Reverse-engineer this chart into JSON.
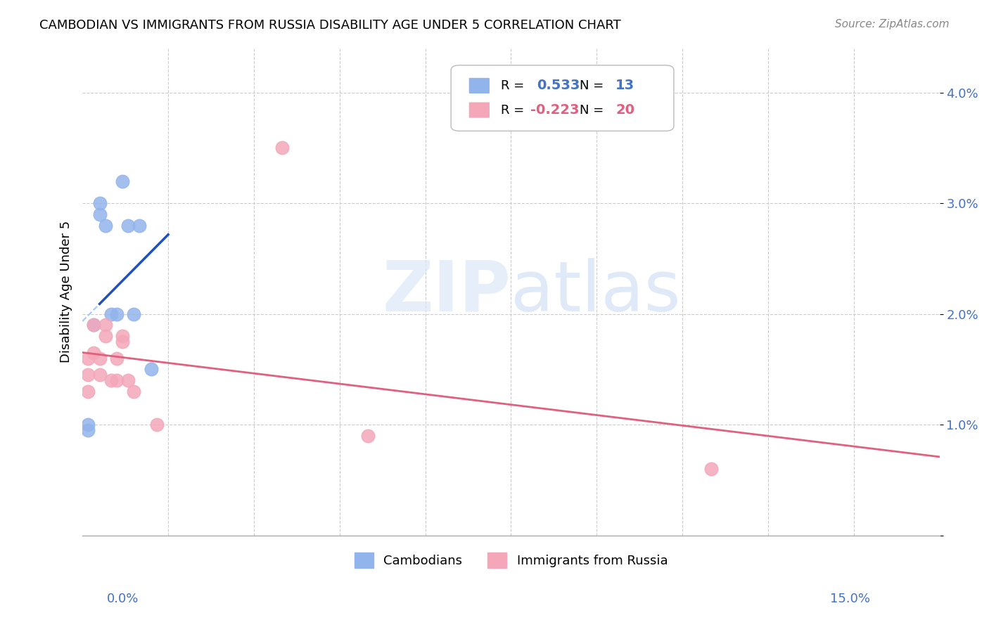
{
  "title": "CAMBODIAN VS IMMIGRANTS FROM RUSSIA DISABILITY AGE UNDER 5 CORRELATION CHART",
  "source": "Source: ZipAtlas.com",
  "ylabel": "Disability Age Under 5",
  "xlim": [
    0.0,
    0.15
  ],
  "ylim": [
    0.0,
    0.044
  ],
  "blue_color": "#92B4EC",
  "pink_color": "#F4A7B9",
  "trend_blue": "#2050C0",
  "trend_pink": "#E06080",
  "dash_color": "#A8C8F0",
  "cam_x": [
    0.001,
    0.001,
    0.002,
    0.003,
    0.003,
    0.004,
    0.005,
    0.006,
    0.007,
    0.008,
    0.009,
    0.01,
    0.012
  ],
  "cam_y": [
    0.01,
    0.0095,
    0.019,
    0.03,
    0.029,
    0.028,
    0.02,
    0.02,
    0.032,
    0.028,
    0.02,
    0.028,
    0.015
  ],
  "rus_x": [
    0.001,
    0.001,
    0.001,
    0.002,
    0.002,
    0.003,
    0.003,
    0.004,
    0.004,
    0.005,
    0.006,
    0.006,
    0.007,
    0.007,
    0.008,
    0.009,
    0.013,
    0.035,
    0.05,
    0.11
  ],
  "rus_y": [
    0.016,
    0.013,
    0.0145,
    0.019,
    0.0165,
    0.016,
    0.0145,
    0.018,
    0.019,
    0.014,
    0.014,
    0.016,
    0.018,
    0.0175,
    0.014,
    0.013,
    0.01,
    0.035,
    0.009,
    0.006
  ],
  "legend_r_blue": "0.533",
  "legend_n_blue": "13",
  "legend_r_pink": "-0.223",
  "legend_n_pink": "20",
  "label_color": "#4472C4",
  "grid_color": "#CCCCCC",
  "ytick_vals": [
    0.0,
    0.01,
    0.02,
    0.03,
    0.04
  ],
  "ytick_labels": [
    "",
    "1.0%",
    "2.0%",
    "3.0%",
    "4.0%"
  ]
}
